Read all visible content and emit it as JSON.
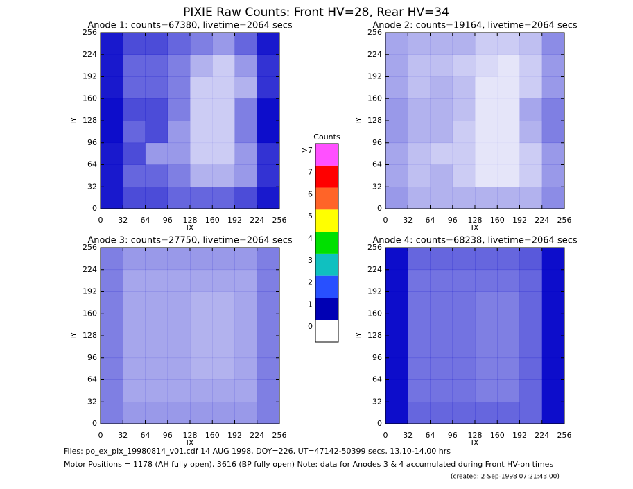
{
  "title": "PIXIE Raw Counts:  Front HV=28, Rear HV=34",
  "chart_data": [
    {
      "type": "heatmap",
      "title": "Anode 1: counts=67380, livetime=2064 secs",
      "xlabel": "IX",
      "ylabel": "IY",
      "xlim": [
        0,
        256
      ],
      "ylim": [
        0,
        256
      ],
      "xticks": [
        0,
        32,
        64,
        96,
        128,
        160,
        192,
        224,
        256
      ],
      "yticks": [
        0,
        32,
        64,
        96,
        128,
        160,
        192,
        224,
        256
      ],
      "color": "#0000c8",
      "values": [
        [
          0.9,
          0.7,
          0.7,
          0.6,
          0.6,
          0.6,
          0.7,
          0.9
        ],
        [
          0.9,
          0.6,
          0.6,
          0.5,
          0.3,
          0.3,
          0.4,
          0.8
        ],
        [
          0.9,
          0.7,
          0.4,
          0.4,
          0.2,
          0.2,
          0.4,
          0.8
        ],
        [
          0.95,
          0.6,
          0.7,
          0.4,
          0.2,
          0.2,
          0.5,
          0.95
        ],
        [
          0.95,
          0.7,
          0.7,
          0.5,
          0.2,
          0.2,
          0.5,
          0.95
        ],
        [
          0.9,
          0.6,
          0.6,
          0.5,
          0.2,
          0.2,
          0.3,
          0.8
        ],
        [
          0.9,
          0.6,
          0.6,
          0.5,
          0.3,
          0.2,
          0.4,
          0.8
        ],
        [
          0.9,
          0.7,
          0.7,
          0.6,
          0.5,
          0.4,
          0.6,
          0.9
        ]
      ]
    },
    {
      "type": "heatmap",
      "title": "Anode 2: counts=19164, livetime=2064 secs",
      "xlabel": "IX",
      "ylabel": "IY",
      "xlim": [
        0,
        256
      ],
      "ylim": [
        0,
        256
      ],
      "xticks": [
        0,
        32,
        64,
        96,
        128,
        160,
        192,
        224,
        256
      ],
      "yticks": [
        0,
        32,
        64,
        96,
        128,
        160,
        192,
        224,
        256
      ],
      "color": "#0000c8",
      "values": [
        [
          0.4,
          0.3,
          0.3,
          0.3,
          0.3,
          0.3,
          0.3,
          0.45
        ],
        [
          0.35,
          0.25,
          0.3,
          0.2,
          0.1,
          0.1,
          0.2,
          0.4
        ],
        [
          0.35,
          0.25,
          0.2,
          0.2,
          0.1,
          0.1,
          0.2,
          0.4
        ],
        [
          0.4,
          0.3,
          0.3,
          0.2,
          0.1,
          0.1,
          0.3,
          0.5
        ],
        [
          0.4,
          0.3,
          0.3,
          0.25,
          0.1,
          0.1,
          0.35,
          0.5
        ],
        [
          0.35,
          0.25,
          0.3,
          0.25,
          0.1,
          0.1,
          0.2,
          0.4
        ],
        [
          0.35,
          0.25,
          0.25,
          0.2,
          0.15,
          0.1,
          0.2,
          0.4
        ],
        [
          0.35,
          0.3,
          0.3,
          0.3,
          0.2,
          0.2,
          0.25,
          0.45
        ]
      ]
    },
    {
      "type": "heatmap",
      "title": "Anode 3: counts=27750, livetime=2064 secs",
      "xlabel": "IX",
      "ylabel": "IY",
      "xlim": [
        0,
        256
      ],
      "ylim": [
        0,
        256
      ],
      "xticks": [
        0,
        32,
        64,
        96,
        128,
        160,
        192,
        224,
        256
      ],
      "yticks": [
        0,
        32,
        64,
        96,
        128,
        160,
        192,
        224,
        256
      ],
      "color": "#0000c8",
      "values": [
        [
          0.5,
          0.4,
          0.4,
          0.4,
          0.4,
          0.4,
          0.4,
          0.5
        ],
        [
          0.5,
          0.35,
          0.35,
          0.35,
          0.35,
          0.35,
          0.35,
          0.5
        ],
        [
          0.5,
          0.35,
          0.35,
          0.35,
          0.3,
          0.3,
          0.35,
          0.5
        ],
        [
          0.5,
          0.35,
          0.35,
          0.35,
          0.3,
          0.3,
          0.35,
          0.5
        ],
        [
          0.5,
          0.35,
          0.35,
          0.35,
          0.3,
          0.3,
          0.35,
          0.5
        ],
        [
          0.5,
          0.35,
          0.35,
          0.35,
          0.3,
          0.3,
          0.35,
          0.5
        ],
        [
          0.5,
          0.35,
          0.35,
          0.35,
          0.35,
          0.35,
          0.35,
          0.5
        ],
        [
          0.5,
          0.4,
          0.4,
          0.4,
          0.4,
          0.4,
          0.4,
          0.5
        ]
      ]
    },
    {
      "type": "heatmap",
      "title": "Anode 4: counts=68238, livetime=2064 secs",
      "xlabel": "IX",
      "ylabel": "IY",
      "xlim": [
        0,
        256
      ],
      "ylim": [
        0,
        256
      ],
      "xticks": [
        0,
        32,
        64,
        96,
        128,
        160,
        192,
        224,
        256
      ],
      "yticks": [
        0,
        32,
        64,
        96,
        128,
        160,
        192,
        224,
        256
      ],
      "color": "#0000c8",
      "values": [
        [
          0.95,
          0.6,
          0.6,
          0.6,
          0.6,
          0.6,
          0.6,
          0.95
        ],
        [
          0.95,
          0.55,
          0.55,
          0.55,
          0.5,
          0.5,
          0.6,
          0.95
        ],
        [
          0.95,
          0.55,
          0.55,
          0.55,
          0.5,
          0.5,
          0.6,
          0.95
        ],
        [
          0.95,
          0.55,
          0.55,
          0.55,
          0.5,
          0.5,
          0.6,
          0.95
        ],
        [
          0.95,
          0.55,
          0.55,
          0.55,
          0.5,
          0.5,
          0.6,
          0.95
        ],
        [
          0.95,
          0.55,
          0.55,
          0.55,
          0.5,
          0.5,
          0.6,
          0.95
        ],
        [
          0.95,
          0.55,
          0.55,
          0.55,
          0.55,
          0.55,
          0.6,
          0.95
        ],
        [
          0.95,
          0.6,
          0.6,
          0.6,
          0.6,
          0.6,
          0.65,
          0.95
        ]
      ]
    }
  ],
  "colorbar": {
    "title": "Counts",
    "ticks": [
      0,
      1,
      2,
      3,
      4,
      5,
      6,
      7,
      {
        "value": 8,
        "label": ">7"
      }
    ],
    "colors": [
      "#ffffff",
      "#0000b4",
      "#2850ff",
      "#10c0c0",
      "#00e000",
      "#ffff00",
      "#ff6428",
      "#ff0000",
      "#ff50ff"
    ]
  },
  "footer": [
    "Files: po_ex_pix_19980814_v01.cdf    14 AUG 1998, DOY=226, UT=47142-50399 secs, 13.10-14.00 hrs",
    "Motor Positions = 1178 (AH fully open), 3616 (BP fully open)    Note: data for Anodes 3 & 4 accumulated during Front HV-on times",
    "(created:  2-Sep-1998 07:21:43.00)"
  ]
}
